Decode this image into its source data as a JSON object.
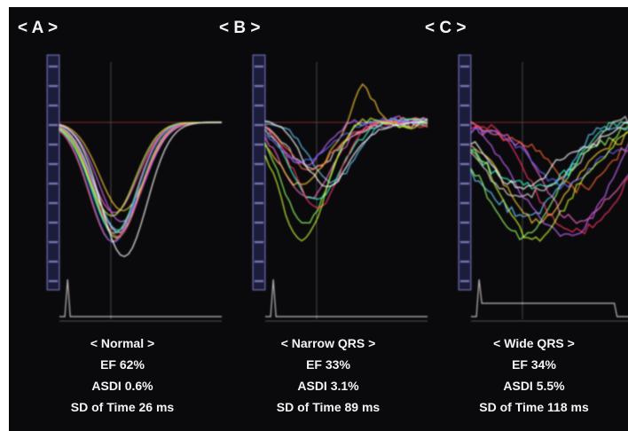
{
  "panels": [
    {
      "label": "< A >",
      "caption": [
        "< Normal >",
        "EF 62%",
        "ASDI 0.6%",
        "SD of Time 26 ms"
      ]
    },
    {
      "label": "< B >",
      "caption": [
        "< Narrow QRS >",
        "EF 33%",
        "ASDI 3.1%",
        "SD of Time 89 ms"
      ]
    },
    {
      "label": "< C >",
      "caption": [
        "< Wide QRS >",
        "EF 34%",
        "ASDI 5.5%",
        "SD of Time 118 ms"
      ]
    }
  ]
}
